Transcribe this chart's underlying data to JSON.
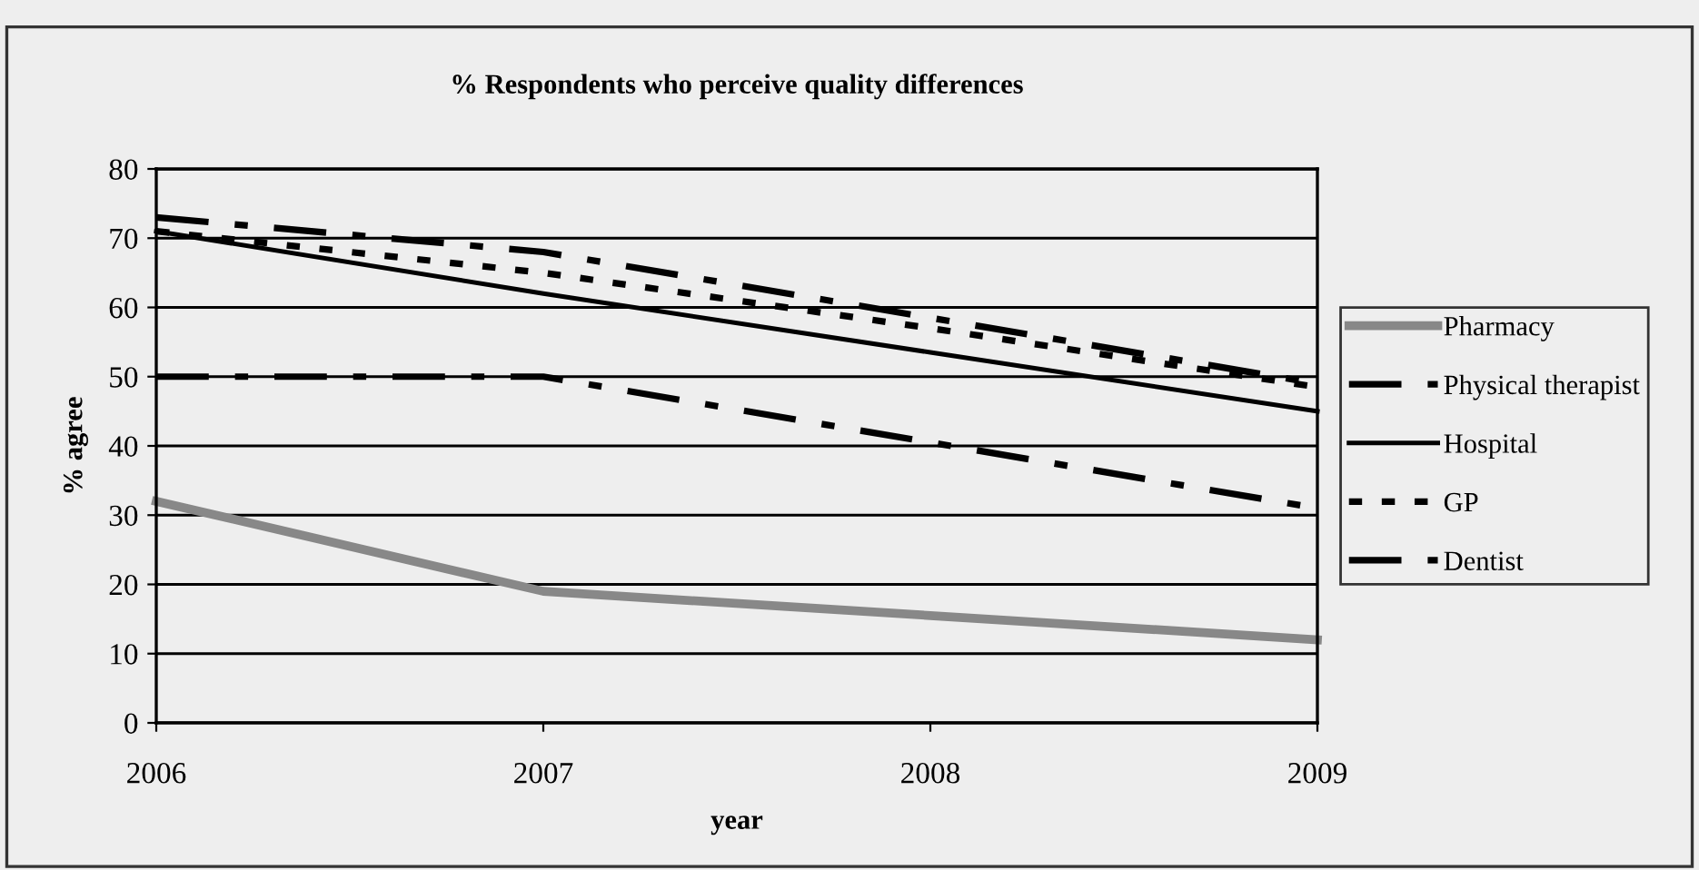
{
  "chart_data": {
    "type": "line",
    "title": "% Respondents who perceive quality differences",
    "xlabel": "year",
    "ylabel": "% agree",
    "x": [
      2006,
      2007,
      2008,
      2009
    ],
    "xlim": [
      2006,
      2009
    ],
    "xticks": [
      2006,
      2007,
      2008,
      2009
    ],
    "ylim": [
      0,
      80
    ],
    "yticks": [
      0,
      10,
      20,
      30,
      40,
      50,
      60,
      70,
      80
    ],
    "grid": "y",
    "legend": "right",
    "marker": "none",
    "series": [
      {
        "name": "Pharmacy",
        "color": "#888888",
        "line_style": "solid",
        "values": [
          32,
          19,
          15.5,
          12
        ]
      },
      {
        "name": "Physical therapist",
        "color": "#000000",
        "line_style": "dashed",
        "values": [
          50,
          50,
          40.5,
          31
        ]
      },
      {
        "name": "Hospital",
        "color": "#000000",
        "line_style": "solid",
        "values": [
          71,
          62,
          53.5,
          45
        ]
      },
      {
        "name": "GP",
        "color": "#000000",
        "line_style": "dotted",
        "values": [
          71,
          65,
          57,
          48.5
        ]
      },
      {
        "name": "Dentist",
        "color": "#000000",
        "line_style": "dashed",
        "values": [
          73,
          68,
          58.5,
          49
        ]
      }
    ]
  }
}
